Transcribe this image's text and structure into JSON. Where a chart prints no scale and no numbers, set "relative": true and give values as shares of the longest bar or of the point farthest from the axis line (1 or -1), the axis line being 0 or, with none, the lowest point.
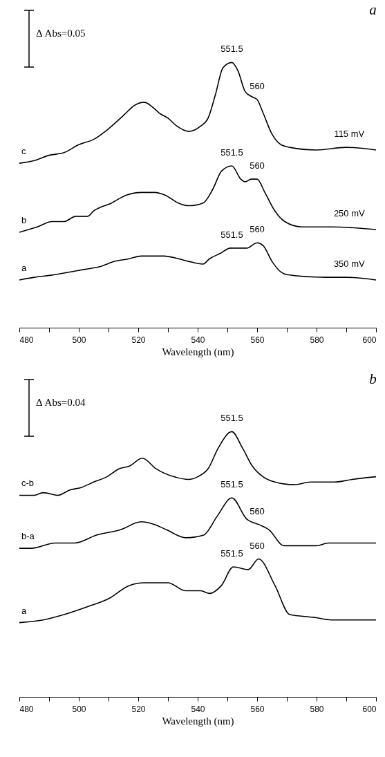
{
  "chart_data": [
    {
      "type": "line",
      "title": "a",
      "xlabel": "Wavelength (nm)",
      "relative": true,
      "xlim": [
        480,
        600
      ],
      "xticks": [
        480,
        {
          "value": 490,
          "label": null
        },
        500,
        {
          "value": 510,
          "label": null
        },
        520,
        {
          "value": 530,
          "label": null
        },
        540,
        {
          "value": 550,
          "label": null
        },
        560,
        {
          "value": 570,
          "label": null
        },
        580,
        {
          "value": 590,
          "label": null
        },
        600
      ],
      "series": [
        {
          "name": "c",
          "color": "#000000",
          "x": [
            480,
            485,
            490,
            495,
            500,
            505,
            510,
            515,
            519,
            522,
            525,
            527,
            530,
            533,
            537,
            541,
            543.5,
            546,
            548.5,
            551.5,
            553.5,
            556,
            558.4,
            560,
            562,
            565,
            568,
            571,
            580,
            590,
            600
          ],
          "values": [
            0.62,
            0.63,
            0.65,
            0.66,
            0.69,
            0.71,
            0.75,
            0.8,
            0.84,
            0.85,
            0.83,
            0.81,
            0.79,
            0.76,
            0.74,
            0.76,
            0.79,
            0.88,
            0.98,
            1,
            0.97,
            0.89,
            0.87,
            0.86,
            0.81,
            0.73,
            0.69,
            0.68,
            0.67,
            0.68,
            0.67
          ]
        },
        {
          "name": "b",
          "color": "#000000",
          "x": [
            480,
            486,
            491,
            495,
            499,
            503,
            505,
            511,
            516,
            521,
            525.5,
            529,
            533.5,
            537,
            541.8,
            545,
            548,
            551.5,
            554.5,
            556,
            558,
            560,
            562.6,
            566,
            569.3,
            575,
            585,
            600
          ],
          "values": [
            0.36,
            0.38,
            0.4,
            0.4,
            0.42,
            0.42,
            0.44,
            0.47,
            0.5,
            0.51,
            0.51,
            0.5,
            0.47,
            0.46,
            0.47,
            0.52,
            0.59,
            0.61,
            0.56,
            0.55,
            0.56,
            0.56,
            0.51,
            0.44,
            0.4,
            0.38,
            0.38,
            0.37
          ]
        },
        {
          "name": "a",
          "color": "#000000",
          "x": [
            480,
            485,
            492,
            497,
            502,
            507,
            512,
            517,
            521,
            526,
            528.6,
            533.5,
            537,
            541.8,
            544,
            547.6,
            551,
            554.5,
            556.5,
            560,
            562,
            565,
            568,
            570,
            583,
            590,
            600
          ],
          "values": [
            0.18,
            0.19,
            0.2,
            0.21,
            0.22,
            0.23,
            0.25,
            0.26,
            0.27,
            0.27,
            0.27,
            0.26,
            0.25,
            0.24,
            0.26,
            0.28,
            0.3,
            0.3,
            0.3,
            0.32,
            0.31,
            0.25,
            0.21,
            0.2,
            0.19,
            0.19,
            0.18
          ]
        }
      ],
      "annotations": [
        "Δ Abs=0.05",
        {
          "text": "551.5",
          "x": 551.5,
          "y": 1
        },
        {
          "text": "560",
          "x": 560,
          "y": 0.86
        },
        {
          "text": "115 mV",
          "x": 591,
          "y": 0.68
        },
        {
          "text": "551.5",
          "x": 551.5,
          "y": 0.61
        },
        {
          "text": "560",
          "x": 560,
          "y": 0.56
        },
        {
          "text": "250 mV",
          "x": 591,
          "y": 0.38
        },
        {
          "text": "551.5",
          "x": 551.5,
          "y": 0.3
        },
        {
          "text": "560",
          "x": 560,
          "y": 0.32
        },
        {
          "text": "350 mV",
          "x": 591,
          "y": 0.19
        }
      ]
    },
    {
      "type": "line",
      "title": "b",
      "xlabel": "Wavelength (nm)",
      "relative": true,
      "xlim": [
        480,
        600
      ],
      "xticks": [
        480,
        {
          "value": 490,
          "label": null
        },
        500,
        {
          "value": 510,
          "label": null
        },
        520,
        {
          "value": 530,
          "label": null
        },
        540,
        {
          "value": 550,
          "label": null
        },
        560,
        {
          "value": 570,
          "label": null
        },
        580,
        {
          "value": 590,
          "label": null
        },
        600
      ],
      "series": [
        {
          "name": "c-b",
          "color": "#000000",
          "x": [
            480,
            485,
            488,
            493,
            497,
            501,
            505,
            509.5,
            513.6,
            517,
            521.4,
            526,
            532,
            537,
            540,
            543.5,
            547,
            551.5,
            555,
            558.4,
            562,
            566,
            572.5,
            578,
            586,
            592,
            600
          ],
          "values": [
            0.76,
            0.76,
            0.77,
            0.76,
            0.78,
            0.79,
            0.81,
            0.83,
            0.86,
            0.87,
            0.9,
            0.86,
            0.83,
            0.82,
            0.83,
            0.86,
            0.94,
            1,
            0.94,
            0.87,
            0.83,
            0.81,
            0.8,
            0.81,
            0.81,
            0.82,
            0.83
          ]
        },
        {
          "name": "b-a",
          "color": "#000000",
          "x": [
            480,
            484,
            492,
            498.5,
            506,
            514,
            521,
            525.5,
            529.5,
            536,
            542,
            546.5,
            551.5,
            556.5,
            560.5,
            564,
            569,
            580,
            584,
            593,
            596,
            600
          ],
          "values": [
            0.56,
            0.56,
            0.58,
            0.58,
            0.61,
            0.63,
            0.66,
            0.65,
            0.63,
            0.6,
            0.61,
            0.68,
            0.75,
            0.67,
            0.65,
            0.63,
            0.57,
            0.57,
            0.58,
            0.58,
            0.58,
            0.58
          ]
        },
        {
          "name": "a",
          "color": "#000000",
          "x": [
            480,
            488,
            495,
            503,
            510,
            517,
            522,
            526,
            530,
            536,
            539,
            541,
            544,
            548,
            552,
            557,
            560.5,
            566,
            571,
            579,
            585,
            590,
            600
          ],
          "values": [
            0.28,
            0.29,
            0.31,
            0.34,
            0.37,
            0.42,
            0.43,
            0.43,
            0.43,
            0.4,
            0.4,
            0.4,
            0.39,
            0.42,
            0.49,
            0.48,
            0.52,
            0.42,
            0.31,
            0.3,
            0.29,
            0.29,
            0.29
          ]
        }
      ],
      "annotations": [
        "Δ Abs=0.04",
        {
          "text": "551.5",
          "x": 551.5,
          "y": 1
        },
        {
          "text": "551.5",
          "x": 551.5,
          "y": 0.75
        },
        {
          "text": "560",
          "x": 560,
          "y": 0.65
        },
        {
          "text": "551.5",
          "x": 551.5,
          "y": 0.49
        },
        {
          "text": "560",
          "x": 560,
          "y": 0.52
        }
      ]
    }
  ]
}
